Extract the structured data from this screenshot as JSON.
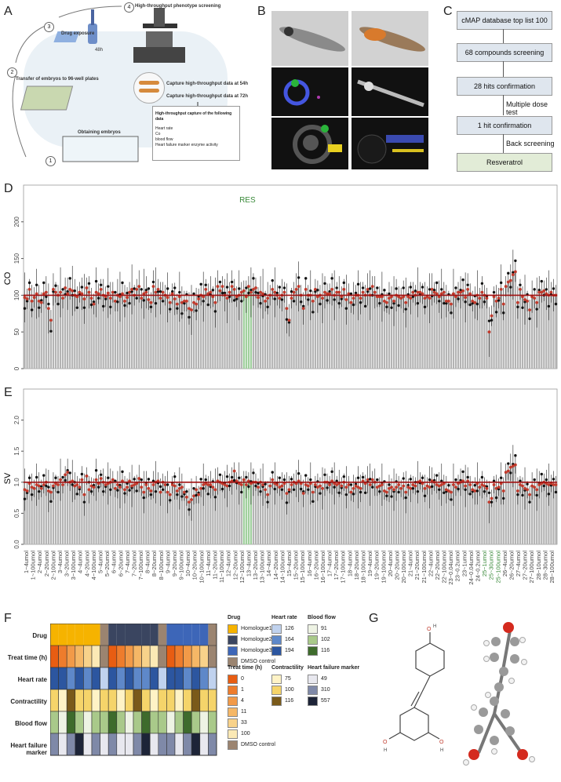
{
  "letters": {
    "a": "A",
    "b": "B",
    "c": "C",
    "d": "D",
    "e": "E",
    "f": "F",
    "g": "G"
  },
  "panelA": {
    "step1": "Obtaining embryos",
    "step2": "Transfer of embryos to 96-well plates",
    "step3": "Drug exposure",
    "step4": "High-throughput phenotype screening",
    "hours48": "48h",
    "capture54": "Capture high-throughput data at 54h",
    "capture72": "Capture high-throughput data at 72h",
    "boxTitle": "High-throughput capture of the following data",
    "boxItems": [
      "Heart rate",
      "Co",
      "blood flow",
      "Heart failure marker enzyme activity"
    ],
    "nums": [
      "1",
      "2",
      "3",
      "4"
    ]
  },
  "panelC": {
    "boxes": [
      "cMAP database top list 100",
      "68 compounds screening",
      "28 hits confirmation",
      "1 hit confirmation",
      "Resveratrol"
    ],
    "labels": [
      "Multiple dose test",
      "Back screening"
    ]
  },
  "chart_data": [
    {
      "type": "bar",
      "panel": "D",
      "ylabel": "CO",
      "yticks": [
        "0",
        "50",
        "100",
        "150",
        "200"
      ],
      "ylim": [
        0,
        250
      ],
      "reference_line": 100,
      "highlight_label": "RES",
      "highlight_range": [
        92,
        95
      ],
      "values": [
        97,
        95,
        108,
        92,
        97,
        102,
        92,
        90,
        102,
        104,
        82,
        66,
        108,
        104,
        100,
        104,
        96,
        110,
        102,
        108,
        106,
        100,
        98,
        104,
        102,
        95,
        110,
        104,
        96,
        88,
        104,
        102,
        108,
        100,
        98,
        103,
        96,
        104,
        92,
        100,
        98,
        102,
        92,
        97,
        104,
        108,
        100,
        108,
        112,
        96,
        102,
        104,
        94,
        90,
        112,
        104,
        108,
        96,
        104,
        100,
        97,
        90,
        102,
        95,
        88,
        98,
        90,
        92,
        92,
        82,
        80,
        90,
        88,
        95,
        100,
        98,
        108,
        102,
        104,
        98,
        90,
        112,
        106,
        112,
        100,
        96,
        104,
        112,
        108,
        98,
        100,
        104,
        106,
        98,
        112,
        104,
        108,
        110,
        97,
        104,
        102,
        92,
        96,
        100,
        108,
        104,
        100,
        96,
        100,
        104,
        82,
        66,
        96,
        104,
        108,
        112,
        100,
        82,
        108,
        100,
        100,
        92,
        108,
        98,
        100,
        96,
        104,
        102,
        102,
        108,
        100,
        104,
        104,
        98,
        108,
        94,
        102,
        90,
        96,
        100,
        100,
        96,
        104,
        100,
        108,
        100,
        112,
        104,
        98,
        98,
        98,
        92,
        90,
        96,
        98,
        92,
        100,
        98,
        96,
        98,
        90,
        98,
        96,
        104,
        100,
        104,
        104,
        102,
        96,
        98,
        96,
        108,
        104,
        102,
        98,
        102,
        104,
        92,
        92,
        88,
        102,
        98,
        104,
        104,
        106,
        97,
        108,
        102,
        92,
        90,
        100,
        96,
        104,
        100,
        96,
        50,
        72,
        98,
        92,
        96,
        108,
        88,
        112,
        118,
        120,
        128,
        132,
        90,
        108,
        98,
        94,
        92,
        80,
        98,
        96,
        90,
        104,
        104,
        106,
        102,
        100,
        104,
        100,
        100
      ]
    },
    {
      "type": "bar",
      "panel": "E",
      "ylabel": "SV",
      "yticks": [
        "0.0",
        "0.5",
        "1.0",
        "1.5",
        "2.0"
      ],
      "ylim": [
        0,
        2.5
      ],
      "reference_line": 1.0,
      "highlight_range": [
        92,
        95
      ],
      "values": [
        0.88,
        0.86,
        0.98,
        0.92,
        0.9,
        0.96,
        0.94,
        0.9,
        0.96,
        1.0,
        0.86,
        0.84,
        0.94,
        0.98,
        0.96,
        1.04,
        0.96,
        1.12,
        1.16,
        1.0,
        1.02,
        0.94,
        0.96,
        0.92,
        1.04,
        0.8,
        1.1,
        0.88,
        0.94,
        0.92,
        1.04,
        0.98,
        1.06,
        1.0,
        0.96,
        0.98,
        1.0,
        1.04,
        0.9,
        0.96,
        0.92,
        1.02,
        0.88,
        0.92,
        1.02,
        0.94,
        0.96,
        0.98,
        1.06,
        0.92,
        0.84,
        0.96,
        0.9,
        0.86,
        0.96,
        1.0,
        1.02,
        0.84,
        1.0,
        0.96,
        0.84,
        0.8,
        0.96,
        0.94,
        0.86,
        0.9,
        0.92,
        0.84,
        0.76,
        0.68,
        0.72,
        0.78,
        0.88,
        0.8,
        0.9,
        0.96,
        0.98,
        0.96,
        0.96,
        0.92,
        0.88,
        1.02,
        1.0,
        0.98,
        0.96,
        0.94,
        1.0,
        1.02,
        1.18,
        1.02,
        0.98,
        0.96,
        1.04,
        0.96,
        1.02,
        0.98,
        1.0,
        1.0,
        0.92,
        1.0,
        0.96,
        0.88,
        0.8,
        0.94,
        1.04,
        0.98,
        0.96,
        0.92,
        0.94,
        0.98,
        0.82,
        0.88,
        0.96,
        1.0,
        0.98,
        1.02,
        0.98,
        0.82,
        0.96,
        0.94,
        0.98,
        0.84,
        0.96,
        0.92,
        0.94,
        0.9,
        1.0,
        1.0,
        0.96,
        1.02,
        0.98,
        0.96,
        0.98,
        0.94,
        1.0,
        0.92,
        0.96,
        0.84,
        0.9,
        0.94,
        0.92,
        0.9,
        1.02,
        0.98,
        1.04,
        0.96,
        1.04,
        1.0,
        0.92,
        0.94,
        0.96,
        0.86,
        0.84,
        0.9,
        0.92,
        0.88,
        0.92,
        0.96,
        0.9,
        0.94,
        0.84,
        0.92,
        0.9,
        0.96,
        0.94,
        1.0,
        1.02,
        0.98,
        0.9,
        0.94,
        0.92,
        1.02,
        1.0,
        0.96,
        0.94,
        0.96,
        0.98,
        0.88,
        0.86,
        0.84,
        0.96,
        0.92,
        0.98,
        1.0,
        1.02,
        0.94,
        1.02,
        0.96,
        0.88,
        0.86,
        0.98,
        0.92,
        0.96,
        0.94,
        0.9,
        0.68,
        0.74,
        0.96,
        0.9,
        0.92,
        0.98,
        0.86,
        1.16,
        1.18,
        1.24,
        1.26,
        1.28,
        0.86,
        0.96,
        0.94,
        0.9,
        0.88,
        0.8,
        0.94,
        0.92,
        0.88,
        0.96,
        0.98,
        1.0,
        0.98,
        0.96,
        0.98,
        0.96,
        0.96
      ],
      "xlabels": [
        "1~4umol",
        "1~100umol",
        "2~4umol",
        "2~20umol",
        "2~100umol",
        "3~4umol",
        "3~20umol",
        "3~100umol",
        "4~4umol",
        "4~20umol",
        "4~100umol",
        "5~4umol",
        "5~20umol",
        "6~4umol",
        "6~20umol",
        "7~4umol",
        "7~20umol",
        "7~100umol",
        "8~4umol",
        "8~20umol",
        "8~100umol",
        "9~4umol",
        "9~20umol",
        "9~100umol",
        "10~4umol",
        "10~20umol",
        "10~100umol",
        "11~4umol",
        "11~20umol",
        "11~100umol",
        "12~4umol",
        "12~20umol",
        "12~100umol",
        "13~4umol",
        "13~20umol",
        "13~100umol",
        "14~4umol",
        "14~20umol",
        "14~100umol",
        "15~4umol",
        "15~20umol",
        "15~100umol",
        "16~4umol",
        "16~20umol",
        "16~100umol",
        "17~4umol",
        "17~20umol",
        "17~100umol",
        "18~4umol",
        "18~20umol",
        "18~100umol",
        "19~4umol",
        "19~20umol",
        "19~100umol",
        "20~4umol",
        "20~20umol",
        "20~100umol",
        "21~4umol",
        "21~20umol",
        "21~100umol",
        "22~4umol",
        "22~20umol",
        "22~100umol",
        "23~0.04umol",
        "23~0.2umol",
        "23~1umol",
        "24~0.04umol",
        "24~0.2umol",
        "25~1umol",
        "25~30umol",
        "25~100umol",
        "26~4umol",
        "26~20umol",
        "27~4umol",
        "27~20umol",
        "27~100umol",
        "28~10umol",
        "28~30umol",
        "28~100umol"
      ],
      "highlight_xlabels": [
        "25~1umol",
        "25~30umol",
        "25~100umol"
      ]
    }
  ],
  "panelF": {
    "rowLabels": [
      "Drug",
      "Treat time (h)",
      "Heart rate",
      "Contractility",
      "Blood flow",
      "Heart failure marker"
    ],
    "legendDrug": {
      "title": "Drug",
      "items": [
        "Homologue1",
        "Homologue2",
        "Homologue3",
        "DMSO control"
      ],
      "colors": [
        "#f6b300",
        "#3a4560",
        "#3d66b8",
        "#9b8470"
      ]
    },
    "legendTime": {
      "title": "Treat time (h)",
      "items": [
        "0",
        "1",
        "4",
        "11",
        "33",
        "100",
        "DMSO control"
      ],
      "colors": [
        "#e85d12",
        "#ee7c2c",
        "#f29a48",
        "#f5b766",
        "#f8d28a",
        "#fbe9b5",
        "#9b8470"
      ]
    },
    "legendHR": {
      "title": "Heart rate",
      "items": [
        "126",
        "164",
        "194"
      ],
      "colors": [
        "#c0d2ee",
        "#5e88c9",
        "#2c56a0"
      ]
    },
    "legendContract": {
      "title": "Contractility",
      "items": [
        "75",
        "100",
        "116"
      ],
      "colors": [
        "#fff3c6",
        "#f5d46a",
        "#7a5a1a"
      ]
    },
    "legendBF": {
      "title": "Blood flow",
      "items": [
        "91",
        "102",
        "116"
      ],
      "colors": [
        "#eef3e4",
        "#a9c98a",
        "#3e6b2c"
      ]
    },
    "legendHF": {
      "title": "Heart failure marker",
      "items": [
        "49",
        "310",
        "557"
      ],
      "colors": [
        "#e8e8ef",
        "#7f89a8",
        "#1d2438"
      ]
    }
  },
  "panelG": {
    "oh": "O",
    "h": "H"
  }
}
